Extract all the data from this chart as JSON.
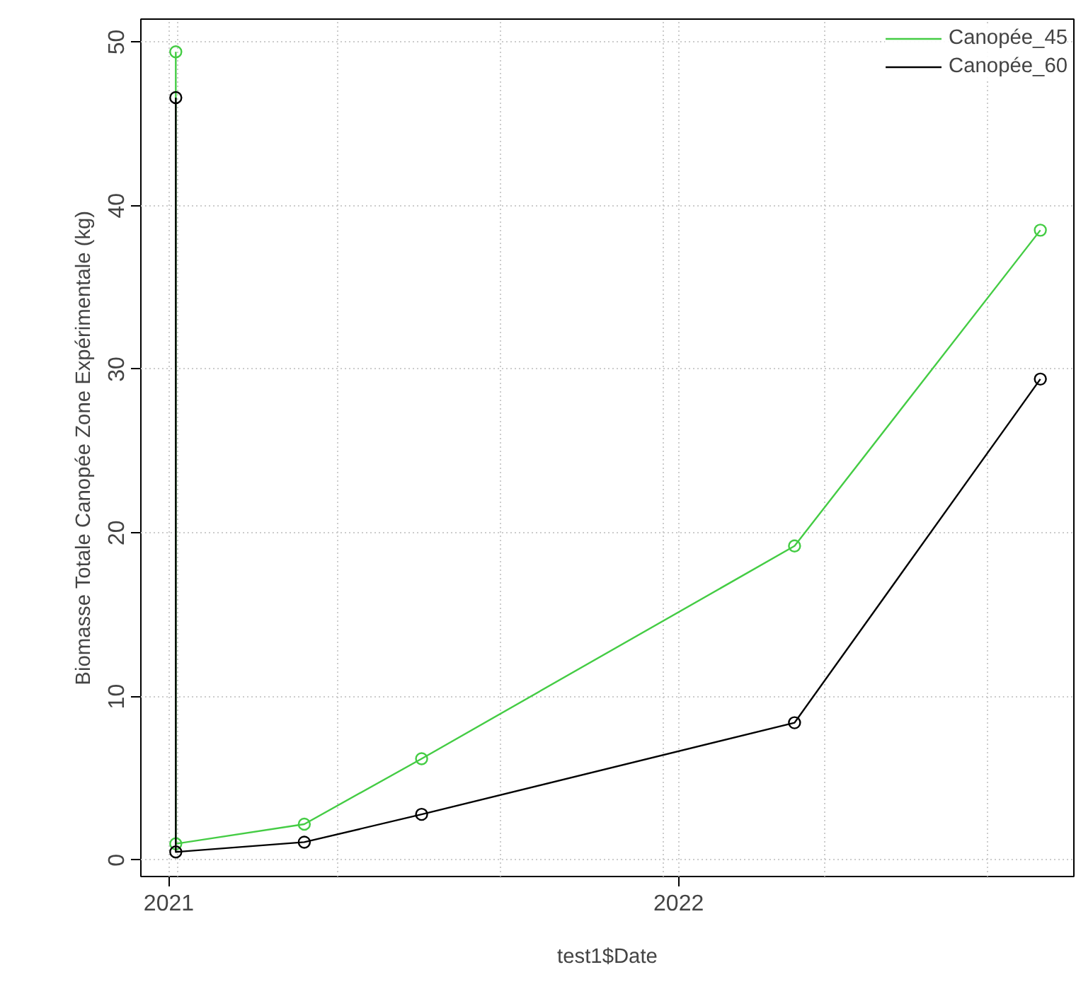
{
  "chart_data": {
    "type": "line",
    "xlabel": "test1$Date",
    "ylabel": "Biomasse Totale Canopée Zone Expérimentale (kg)",
    "x": [
      "2021-01-06",
      "2021-01-06",
      "2021-04-08",
      "2021-07-01",
      "2022-03-25",
      "2022-09-17"
    ],
    "series": [
      {
        "name": "Canopée_45",
        "color": "#44cc44",
        "values": [
          49.4,
          1.0,
          2.2,
          6.2,
          19.2,
          38.5
        ]
      },
      {
        "name": "Canopée_60",
        "color": "#000000",
        "values": [
          46.6,
          0.5,
          1.1,
          2.8,
          8.4,
          29.4
        ]
      }
    ],
    "xlim": [
      "2020-12-12",
      "2022-10-11"
    ],
    "xticks": [
      {
        "value": "2021-01-01",
        "label": "2021"
      },
      {
        "value": "2022-01-01",
        "label": "2022"
      },
      {
        "value": "2021-01-07",
        "label": null
      },
      {
        "value": "2021-05-02",
        "label": null
      },
      {
        "value": "2021-08-26",
        "label": null
      },
      {
        "value": "2021-12-21",
        "label": null
      },
      {
        "value": "2022-04-16",
        "label": null
      },
      {
        "value": "2022-08-10",
        "label": null
      }
    ],
    "ylim": [
      -1,
      51.4
    ],
    "yticks": [
      0,
      10,
      20,
      30,
      40,
      50
    ],
    "grid": true,
    "legend": "top right",
    "marker": "circle"
  }
}
